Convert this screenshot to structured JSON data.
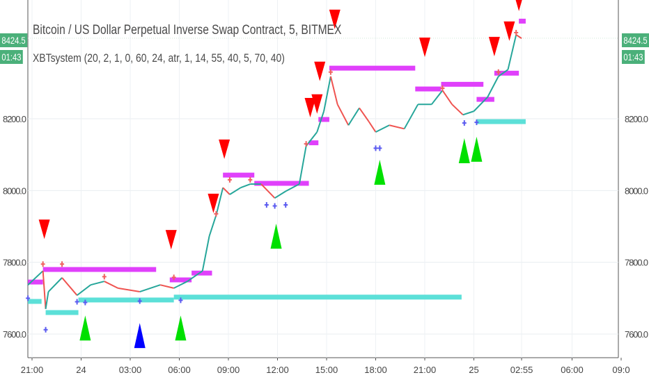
{
  "chart_data": {
    "type": "line",
    "title": "Bitcoin / US Dollar Perpetual Inverse Swap Contract, 5, BITMEX",
    "indicator": "XBTsystem (20, 2, 1, 0, 60, 24, atr, 1, 14, 55, 40, 5, 70, 40)",
    "last_price": "8424.5",
    "countdown": "01:43",
    "ylim": [
      7560,
      8531
    ],
    "y_ticks": [
      "7600.0",
      "7800.0",
      "8000.0",
      "8200.0"
    ],
    "x_ticks": [
      {
        "t": "23 21:00",
        "label": "21:00"
      },
      {
        "t": "24 00:00",
        "label": "24"
      },
      {
        "t": "24 03:00",
        "label": "03:00"
      },
      {
        "t": "24 06:00",
        "label": "06:00"
      },
      {
        "t": "24 09:00",
        "label": "09:00"
      },
      {
        "t": "24 12:00",
        "label": "12:00"
      },
      {
        "t": "24 15:00",
        "label": "15:00"
      },
      {
        "t": "24 18:00",
        "label": "18:00"
      },
      {
        "t": "24 21:00",
        "label": "21:00"
      },
      {
        "t": "25 00:00",
        "label": "25"
      },
      {
        "t": "25 02:55",
        "label": "02:55"
      },
      {
        "t": "25 06:00",
        "label": "06:00"
      },
      {
        "t": "25 09:00",
        "label": "09:0"
      }
    ],
    "grid": true,
    "price": [
      [
        "23 20:45",
        7737
      ],
      [
        "23 21:40",
        7776
      ],
      [
        "23 21:50",
        7670
      ],
      [
        "23 22:00",
        7718
      ],
      [
        "23 22:50",
        7757
      ],
      [
        "23 23:45",
        7708
      ],
      [
        "24 00:35",
        7737
      ],
      [
        "24 01:25",
        7747
      ],
      [
        "24 02:15",
        7728
      ],
      [
        "24 03:35",
        7718
      ],
      [
        "24 04:50",
        7737
      ],
      [
        "24 05:40",
        7728
      ],
      [
        "24 06:30",
        7747
      ],
      [
        "24 07:25",
        7776
      ],
      [
        "24 07:50",
        7873
      ],
      [
        "24 08:15",
        7931
      ],
      [
        "24 08:40",
        8008
      ],
      [
        "24 09:05",
        7989
      ],
      [
        "24 09:45",
        8008
      ],
      [
        "24 10:20",
        8018
      ],
      [
        "24 11:00",
        8018
      ],
      [
        "24 11:50",
        7979
      ],
      [
        "24 12:30",
        7998
      ],
      [
        "24 13:20",
        8018
      ],
      [
        "24 13:45",
        8124
      ],
      [
        "24 14:25",
        8163
      ],
      [
        "24 14:50",
        8221
      ],
      [
        "24 15:15",
        8318
      ],
      [
        "24 15:40",
        8240
      ],
      [
        "24 16:20",
        8182
      ],
      [
        "24 17:00",
        8230
      ],
      [
        "24 17:35",
        8192
      ],
      [
        "24 18:00",
        8163
      ],
      [
        "24 18:50",
        8182
      ],
      [
        "24 19:45",
        8172
      ],
      [
        "24 20:35",
        8240
      ],
      [
        "24 21:25",
        8240
      ],
      [
        "24 22:05",
        8279
      ],
      [
        "24 22:40",
        8240
      ],
      [
        "24 23:20",
        8211
      ],
      [
        "25 00:00",
        8221
      ],
      [
        "25 00:50",
        8260
      ],
      [
        "25 01:30",
        8318
      ],
      [
        "25 02:05",
        8337
      ],
      [
        "25 02:35",
        8434
      ],
      [
        "25 02:55",
        8424
      ]
    ],
    "resistance": [
      [
        "23 20:45",
        "23 21:40",
        7745
      ],
      [
        "23 21:40",
        "24 04:35",
        7780
      ],
      [
        "24 05:25",
        "24 06:45",
        7751
      ],
      [
        "24 06:45",
        "24 08:00",
        7770
      ],
      [
        "24 08:40",
        "24 10:35",
        8043
      ],
      [
        "24 10:35",
        "24 13:55",
        8020
      ],
      [
        "24 13:55",
        "24 14:30",
        8133
      ],
      [
        "24 14:30",
        "24 15:10",
        8198
      ],
      [
        "24 15:10",
        "24 20:25",
        8341
      ],
      [
        "24 20:25",
        "24 22:00",
        8283
      ],
      [
        "24 22:00",
        "25 00:35",
        8296
      ],
      [
        "25 00:10",
        "25 01:15",
        8254
      ],
      [
        "25 01:15",
        "25 02:45",
        8327
      ],
      [
        "25 02:45",
        "25 03:10",
        8472
      ]
    ],
    "support": [
      [
        "23 20:45",
        "23 21:35",
        7691
      ],
      [
        "23 21:50",
        "23 23:50",
        7660
      ],
      [
        "23 23:50",
        "24 05:40",
        7695
      ],
      [
        "24 05:40",
        "24 23:15",
        7703
      ],
      [
        "25 00:10",
        "25 03:10",
        8192
      ]
    ],
    "sell_signals": [
      [
        "23 21:45",
        7892
      ],
      [
        "24 05:30",
        7863
      ],
      [
        "24 08:05",
        7964
      ],
      [
        "24 08:45",
        8115
      ],
      [
        "24 14:00",
        8231
      ],
      [
        "24 14:25",
        8241
      ],
      [
        "24 14:35",
        8332
      ],
      [
        "24 15:30",
        8477
      ],
      [
        "24 21:00",
        8399
      ],
      [
        "25 01:15",
        8401
      ],
      [
        "25 02:10",
        8444
      ],
      [
        "25 02:45",
        8527
      ]
    ],
    "buy_signals": [
      [
        "24 00:15",
        7617
      ],
      [
        "24 06:05",
        7617
      ],
      [
        "24 11:55",
        7873
      ],
      [
        "24 18:15",
        8051
      ],
      [
        "24 23:25",
        8111
      ],
      [
        "25 00:10",
        8115
      ]
    ],
    "alt_buy_signals": [
      [
        "24 03:35",
        7596
      ]
    ],
    "highs_marks": [
      [
        "23 21:40",
        7795
      ],
      [
        "23 22:50",
        7795
      ],
      [
        "24 01:25",
        7760
      ],
      [
        "24 05:40",
        7758
      ],
      [
        "24 08:15",
        7935
      ],
      [
        "24 09:05",
        8030
      ],
      [
        "24 10:20",
        8030
      ],
      [
        "24 13:45",
        8130
      ],
      [
        "24 15:15",
        8330
      ],
      [
        "24 22:05",
        8285
      ],
      [
        "25 01:30",
        8330
      ],
      [
        "25 02:35",
        8440
      ]
    ],
    "lows_marks": [
      [
        "23 20:45",
        7700
      ],
      [
        "23 21:50",
        7612
      ],
      [
        "23 23:45",
        7690
      ],
      [
        "24 00:15",
        7688
      ],
      [
        "24 03:35",
        7692
      ],
      [
        "24 06:05",
        7694
      ],
      [
        "24 11:20",
        7960
      ],
      [
        "24 11:50",
        7957
      ],
      [
        "24 12:30",
        7960
      ],
      [
        "24 18:00",
        8118
      ],
      [
        "24 18:15",
        8118
      ],
      [
        "24 23:25",
        8188
      ],
      [
        "25 00:10",
        8190
      ]
    ],
    "colors": {
      "up": "#26a69a",
      "down": "#ef5350",
      "resistance": "#e040fb",
      "support": "#5ce0d8",
      "sell": "#ff0000",
      "buy": "#00e000",
      "alt_buy": "#0000ff",
      "tag": "#4bb07a"
    }
  }
}
